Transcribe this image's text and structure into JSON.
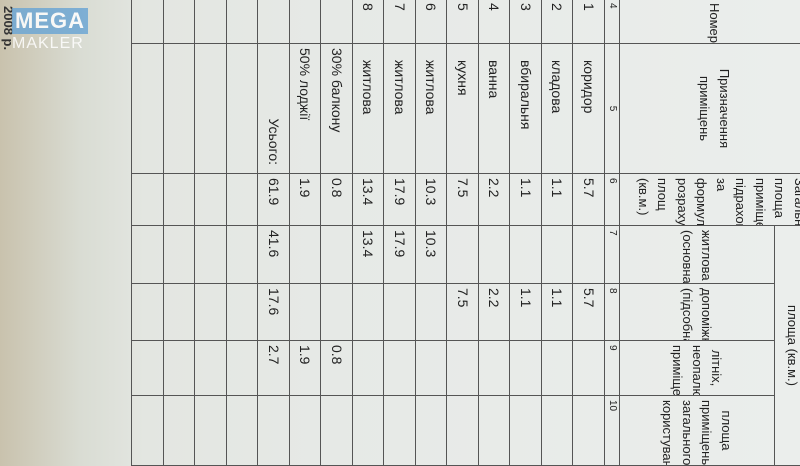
{
  "document": {
    "year_fragment": "2008 р.",
    "watermark": {
      "line1": "MEGA",
      "line2": "MAKLER"
    },
    "headers": {
      "group_area": "площа (кв.м.)",
      "room_numbers": "Номери приміщень",
      "purpose": "Призначення приміщень",
      "total_area": "Загальна площа приміщень підрахована за формулами розрахунку площ (кв.м.)",
      "living": "житлова (основна)",
      "auxiliary": "допоміжна (підсобна)",
      "summer": "літніх, неопалювальних приміщень",
      "common": "площа приміщень загального користування"
    },
    "column_numbers": [
      "4",
      "5",
      "6",
      "7",
      "8",
      "9",
      "10"
    ],
    "rows": [
      {
        "num": "1",
        "purpose": "коридор",
        "total": "5.7",
        "living": "",
        "aux": "5.7",
        "summer": "",
        "common": ""
      },
      {
        "num": "2",
        "purpose": "кладова",
        "total": "1.1",
        "living": "",
        "aux": "1.1",
        "summer": "",
        "common": ""
      },
      {
        "num": "3",
        "purpose": "вбиральня",
        "total": "1.1",
        "living": "",
        "aux": "1.1",
        "summer": "",
        "common": ""
      },
      {
        "num": "4",
        "purpose": "ванна",
        "total": "2.2",
        "living": "",
        "aux": "2.2",
        "summer": "",
        "common": ""
      },
      {
        "num": "5",
        "purpose": "кухня",
        "total": "7.5",
        "living": "",
        "aux": "7.5",
        "summer": "",
        "common": ""
      },
      {
        "num": "6",
        "purpose": "житлова",
        "total": "10.3",
        "living": "10.3",
        "aux": "",
        "summer": "",
        "common": ""
      },
      {
        "num": "7",
        "purpose": "житлова",
        "total": "17.9",
        "living": "17.9",
        "aux": "",
        "summer": "",
        "common": ""
      },
      {
        "num": "8",
        "purpose": "житлова",
        "total": "13.4",
        "living": "13.4",
        "aux": "",
        "summer": "",
        "common": ""
      },
      {
        "num": "",
        "purpose": "30% балкону",
        "total": "0.8",
        "living": "",
        "aux": "",
        "summer": "0.8",
        "common": ""
      },
      {
        "num": "",
        "purpose": "50% лоджії",
        "total": "1.9",
        "living": "",
        "aux": "",
        "summer": "1.9",
        "common": ""
      },
      {
        "num": "",
        "purpose": "Усього:",
        "total": "61.9",
        "living": "41.6",
        "aux": "17.6",
        "summer": "2.7",
        "common": ""
      }
    ]
  }
}
